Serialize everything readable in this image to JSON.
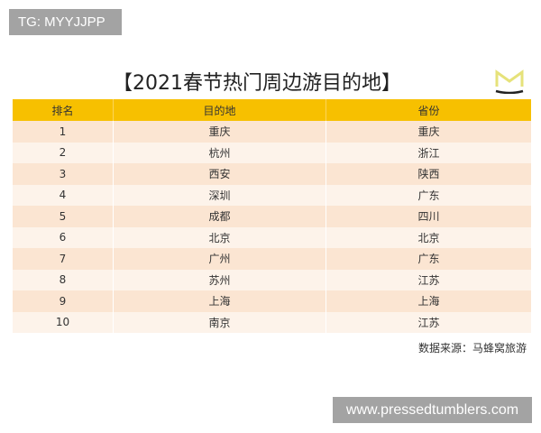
{
  "watermark_top": "TG: MYYJJPP",
  "watermark_bottom": "www.pressedtumblers.com",
  "title": "【2021春节热门周边游目的地】",
  "headers": [
    "排名",
    "目的地",
    "省份"
  ],
  "rows": [
    [
      "1",
      "重庆",
      "重庆"
    ],
    [
      "2",
      "杭州",
      "浙江"
    ],
    [
      "3",
      "西安",
      "陕西"
    ],
    [
      "4",
      "深圳",
      "广东"
    ],
    [
      "5",
      "成都",
      "四川"
    ],
    [
      "6",
      "北京",
      "北京"
    ],
    [
      "7",
      "广州",
      "广东"
    ],
    [
      "8",
      "苏州",
      "江苏"
    ],
    [
      "9",
      "上海",
      "上海"
    ],
    [
      "10",
      "南京",
      "江苏"
    ]
  ],
  "source": "数据来源：马蜂窝旅游",
  "colors": {
    "header": "#f7c000",
    "row_odd": "#fbe5d2",
    "row_even": "#fdf3ea",
    "logo": "#e8e070"
  }
}
